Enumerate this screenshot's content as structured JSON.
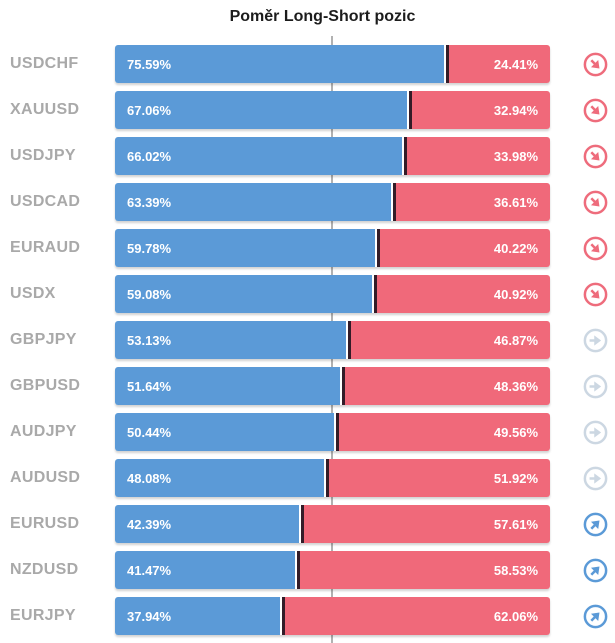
{
  "title": "Poměr Long-Short pozic",
  "colors": {
    "long": "#5b9ad7",
    "short": "#f0697a",
    "divider": "#331c28",
    "label": "#a9a9a9",
    "gridline": "#b1b1b1",
    "title_color": "#1c1c1c",
    "icon_bear": "#ee6c7c",
    "icon_neutral": "#ccd7e2",
    "icon_bull": "#5b9ad7",
    "bar_text": "#ffffff"
  },
  "icons": {
    "down": "arrow-down-right-circle",
    "neutral": "arrow-right-circle",
    "up": "arrow-up-right-circle"
  },
  "chart_data": {
    "type": "bar",
    "orientation": "horizontal-stacked",
    "title": "Poměr Long-Short pozic",
    "series_names": [
      "Long",
      "Short"
    ],
    "xlim": [
      0,
      100
    ],
    "center_gridline": 50,
    "legend": "none",
    "rows": [
      {
        "symbol": "USDCHF",
        "long": 75.59,
        "short": 24.41,
        "long_label": "75.59%",
        "short_label": "24.41%",
        "signal": "down"
      },
      {
        "symbol": "XAUUSD",
        "long": 67.06,
        "short": 32.94,
        "long_label": "67.06%",
        "short_label": "32.94%",
        "signal": "down"
      },
      {
        "symbol": "USDJPY",
        "long": 66.02,
        "short": 33.98,
        "long_label": "66.02%",
        "short_label": "33.98%",
        "signal": "down"
      },
      {
        "symbol": "USDCAD",
        "long": 63.39,
        "short": 36.61,
        "long_label": "63.39%",
        "short_label": "36.61%",
        "signal": "down"
      },
      {
        "symbol": "EURAUD",
        "long": 59.78,
        "short": 40.22,
        "long_label": "59.78%",
        "short_label": "40.22%",
        "signal": "down"
      },
      {
        "symbol": "USDX",
        "long": 59.08,
        "short": 40.92,
        "long_label": "59.08%",
        "short_label": "40.92%",
        "signal": "down"
      },
      {
        "symbol": "GBPJPY",
        "long": 53.13,
        "short": 46.87,
        "long_label": "53.13%",
        "short_label": "46.87%",
        "signal": "neutral"
      },
      {
        "symbol": "GBPUSD",
        "long": 51.64,
        "short": 48.36,
        "long_label": "51.64%",
        "short_label": "48.36%",
        "signal": "neutral"
      },
      {
        "symbol": "AUDJPY",
        "long": 50.44,
        "short": 49.56,
        "long_label": "50.44%",
        "short_label": "49.56%",
        "signal": "neutral"
      },
      {
        "symbol": "AUDUSD",
        "long": 48.08,
        "short": 51.92,
        "long_label": "48.08%",
        "short_label": "51.92%",
        "signal": "neutral"
      },
      {
        "symbol": "EURUSD",
        "long": 42.39,
        "short": 57.61,
        "long_label": "42.39%",
        "short_label": "57.61%",
        "signal": "up"
      },
      {
        "symbol": "NZDUSD",
        "long": 41.47,
        "short": 58.53,
        "long_label": "41.47%",
        "short_label": "58.53%",
        "signal": "up"
      },
      {
        "symbol": "EURJPY",
        "long": 37.94,
        "short": 62.06,
        "long_label": "37.94%",
        "short_label": "62.06%",
        "signal": "up"
      }
    ]
  }
}
